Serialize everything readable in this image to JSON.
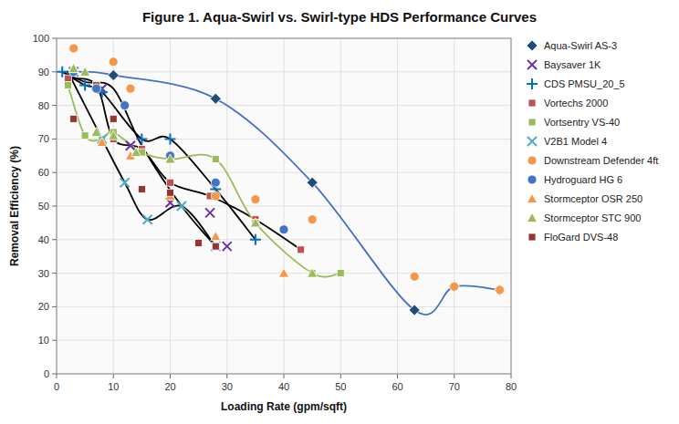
{
  "chart_data": {
    "type": "scatter",
    "title": "Figure 1. Aqua-Swirl vs. Swirl-type HDS Performance Curves",
    "xlabel": "Loading Rate (gpm/sqft)",
    "ylabel": "Removal Efficiency (%)",
    "xlim": [
      0,
      80
    ],
    "ylim": [
      0,
      100
    ],
    "xticks": [
      0,
      10,
      20,
      30,
      40,
      50,
      60,
      70,
      80
    ],
    "yticks": [
      0,
      10,
      20,
      30,
      40,
      50,
      60,
      70,
      80,
      90,
      100
    ],
    "grid": true,
    "legend": "right",
    "series": [
      {
        "name": "Aqua-Swirl AS-3",
        "type": "scatter",
        "color": "#1f4e79",
        "marker": "diamond",
        "x": [
          10,
          28,
          45,
          63,
          70,
          78
        ],
        "values": [
          89,
          82,
          57,
          19,
          26,
          25
        ]
      },
      {
        "name": "Baysaver 1K",
        "type": "scatter",
        "color": "#7030a0",
        "marker": "x",
        "x": [
          3,
          8,
          13,
          20,
          27,
          30
        ],
        "values": [
          90,
          85,
          68,
          51,
          48,
          38
        ]
      },
      {
        "name": "CDS PMSU_20_5",
        "type": "scatter",
        "color": "#0070c0",
        "marker": "plus",
        "x": [
          1,
          5,
          8,
          15,
          20,
          28,
          35
        ],
        "values": [
          90,
          86,
          84,
          70,
          70,
          55,
          40
        ]
      },
      {
        "name": "Vortechs 2000",
        "type": "scatter",
        "color": "#c0504d",
        "marker": "square",
        "x": [
          2,
          7,
          10,
          15,
          20,
          27,
          35,
          43
        ],
        "values": [
          88,
          86,
          70,
          67,
          57,
          53,
          46,
          37
        ]
      },
      {
        "name": "Vortsentry VS-40",
        "type": "scatter",
        "color": "#9bbb59",
        "marker": "square",
        "x": [
          2,
          5,
          8,
          10,
          15,
          20,
          28,
          35,
          45,
          50
        ],
        "values": [
          86,
          71,
          70,
          72,
          66,
          64,
          64,
          45,
          30,
          30
        ]
      },
      {
        "name": "V2B1 Model 4",
        "type": "scatter",
        "color": "#4bacc6",
        "marker": "x",
        "x": [
          3,
          8,
          12,
          16,
          22,
          28
        ],
        "values": [
          90,
          70,
          57,
          46,
          50,
          38
        ]
      },
      {
        "name": "Downstream Defender 4ft",
        "type": "scatter",
        "color": "#f79646",
        "marker": "circle",
        "x": [
          3,
          10,
          13,
          28,
          35,
          45,
          63,
          70,
          78
        ],
        "values": [
          97,
          93,
          85,
          53,
          52,
          46,
          29,
          26,
          25
        ]
      },
      {
        "name": "Hydroguard HG 6",
        "type": "scatter",
        "color": "#4472c4",
        "marker": "circle",
        "x": [
          3,
          7,
          12,
          20,
          28,
          40
        ],
        "values": [
          90,
          85,
          80,
          65,
          57,
          43
        ]
      },
      {
        "name": "Stormceptor OSR 250",
        "type": "scatter",
        "color": "#f79646",
        "marker": "triangle",
        "x": [
          3,
          8,
          13,
          20,
          28,
          40
        ],
        "values": [
          91,
          69,
          65,
          53,
          41,
          30
        ]
      },
      {
        "name": "Stormceptor STC 900",
        "type": "scatter",
        "color": "#9bbb59",
        "marker": "triangle",
        "x": [
          3,
          5,
          7,
          10,
          14,
          20,
          35,
          45
        ],
        "values": [
          91,
          90,
          72,
          71,
          66,
          64,
          45,
          30
        ]
      },
      {
        "name": "FloGard DVS-48",
        "type": "scatter",
        "color": "#943634",
        "marker": "square",
        "x": [
          3,
          10,
          15,
          20,
          25,
          28
        ],
        "values": [
          76,
          76,
          55,
          54,
          39,
          38
        ]
      },
      {
        "type": "line",
        "color": "#4472c4",
        "line_style": "solid",
        "x": [
          1,
          5,
          10,
          28,
          45,
          63,
          70,
          78
        ],
        "values": [
          90,
          90,
          89,
          82,
          57,
          19,
          26,
          25
        ]
      },
      {
        "type": "line",
        "color": "#000000",
        "line_style": "solid",
        "x": [
          1,
          5,
          10,
          15,
          22,
          28
        ],
        "values": [
          90,
          87,
          85,
          68,
          50,
          38
        ]
      },
      {
        "type": "line",
        "color": "#000000",
        "line_style": "solid",
        "x": [
          1,
          5,
          8,
          15,
          20,
          28,
          35
        ],
        "values": [
          90,
          86,
          84,
          70,
          70,
          55,
          40
        ]
      },
      {
        "type": "line",
        "color": "#000000",
        "line_style": "solid",
        "x": [
          2,
          7,
          10,
          15,
          20,
          27,
          35,
          43
        ],
        "values": [
          88,
          86,
          70,
          67,
          57,
          53,
          46,
          37
        ]
      },
      {
        "type": "line",
        "color": "#9bbb59",
        "line_style": "solid",
        "x": [
          2,
          5,
          8,
          10,
          15,
          20,
          28,
          35,
          45,
          50
        ],
        "values": [
          86,
          71,
          70,
          72,
          66,
          64,
          64,
          45,
          30,
          30
        ]
      },
      {
        "type": "line",
        "color": "#000000",
        "line_style": "solid",
        "x": [
          2,
          5,
          8,
          12,
          16,
          22,
          28
        ],
        "values": [
          90,
          80,
          70,
          57,
          46,
          50,
          38
        ]
      }
    ]
  }
}
